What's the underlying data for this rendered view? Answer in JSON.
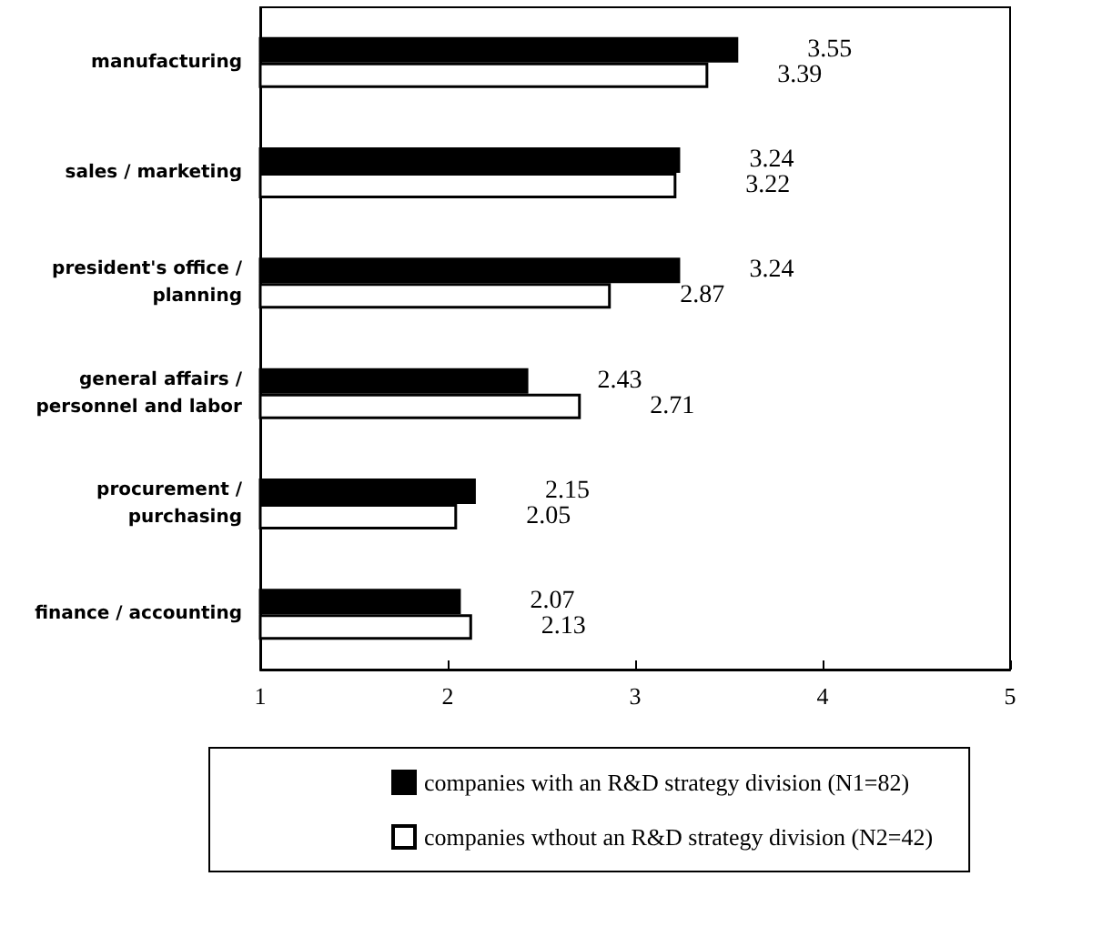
{
  "chart_data": {
    "type": "bar",
    "orientation": "horizontal",
    "categories": [
      "manufacturing",
      "sales / marketing",
      "president's office /\nplanning",
      "general affairs /\npersonnel and labor",
      "procurement /\npurchasing",
      "finance / accounting"
    ],
    "series": [
      {
        "name": "companies with an R&D strategy division (N1=82)",
        "color": "#000000",
        "values": [
          3.55,
          3.24,
          3.24,
          2.43,
          2.15,
          2.07
        ]
      },
      {
        "name": "companies wthout an R&D strategy division (N2=42)",
        "color": "#ffffff",
        "values": [
          3.39,
          3.22,
          2.87,
          2.71,
          2.05,
          2.13
        ]
      }
    ],
    "xlim": [
      1,
      5
    ],
    "xticks": [
      1,
      2,
      3,
      4,
      5
    ],
    "grid": false,
    "legend": "bottom",
    "data_labels": true
  }
}
